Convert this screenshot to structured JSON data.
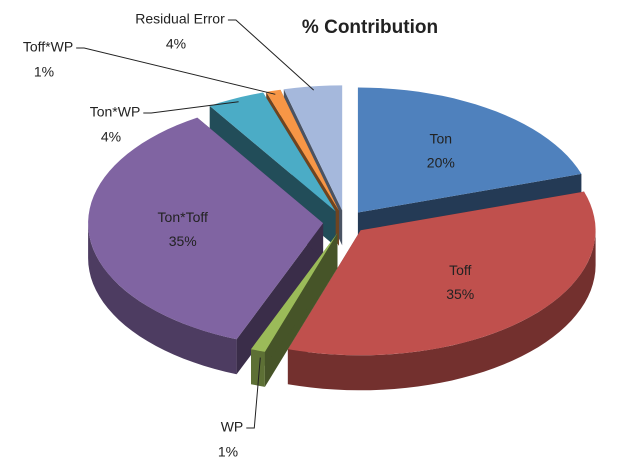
{
  "chart_data": {
    "type": "pie3d",
    "title": "% Contribution",
    "categories": [
      "Ton",
      "Toff",
      "WP",
      "Ton*Toff",
      "Ton*WP",
      "Toff*WP",
      "Residual Error"
    ],
    "values": [
      20,
      35,
      1,
      35,
      4,
      1,
      4
    ],
    "value_labels": [
      "20%",
      "35%",
      "1%",
      "35%",
      "4%",
      "1%",
      "4%"
    ],
    "colors": [
      "#4f81bd",
      "#c0504d",
      "#9bbb59",
      "#8064a2",
      "#4bacc6",
      "#f79646",
      "#a5b8dc"
    ],
    "exploded": true
  }
}
